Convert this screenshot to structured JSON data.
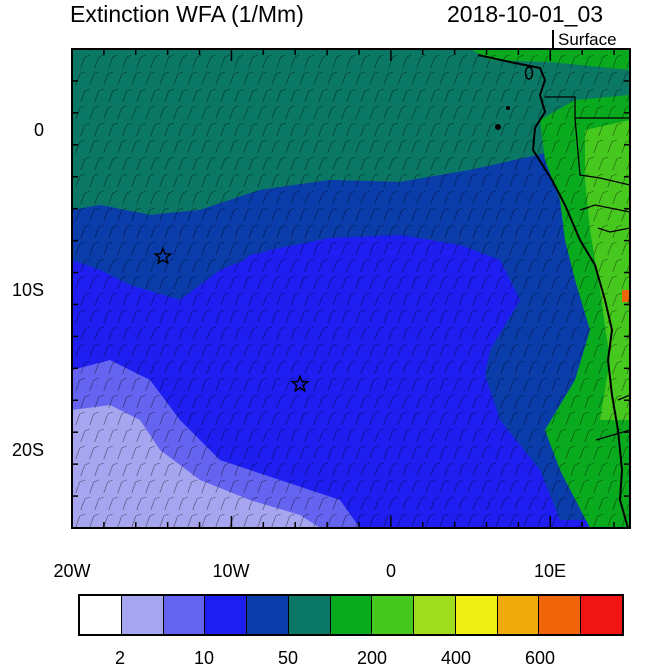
{
  "header": {
    "title": "Extinction WFA (1/Mm)",
    "timestamp": "2018-10-01_03",
    "level": "Surface"
  },
  "map": {
    "lon_range": [
      -20,
      15
    ],
    "lat_range": [
      -25,
      5
    ],
    "x_ticks": [
      "20W",
      "10W",
      "0",
      "10E"
    ],
    "y_ticks": [
      "0",
      "10S",
      "20S"
    ],
    "markers": [
      {
        "name": "star",
        "lon": -14.3,
        "lat": -8.0
      },
      {
        "name": "star",
        "lon": -5.7,
        "lat": -16.0
      }
    ],
    "features": [
      "wind-barbs",
      "coastline",
      "country-borders"
    ]
  },
  "colorbar": {
    "colors": [
      "#ffffff",
      "#a6a6f0",
      "#6464f0",
      "#1e1ef0",
      "#0a3caa",
      "#0a7864",
      "#0aaa1e",
      "#46c81e",
      "#a0dc1e",
      "#f0f014",
      "#f0aa0a",
      "#f0640a",
      "#f01414"
    ],
    "labels": [
      "2",
      "10",
      "50",
      "200",
      "400",
      "600"
    ]
  }
}
